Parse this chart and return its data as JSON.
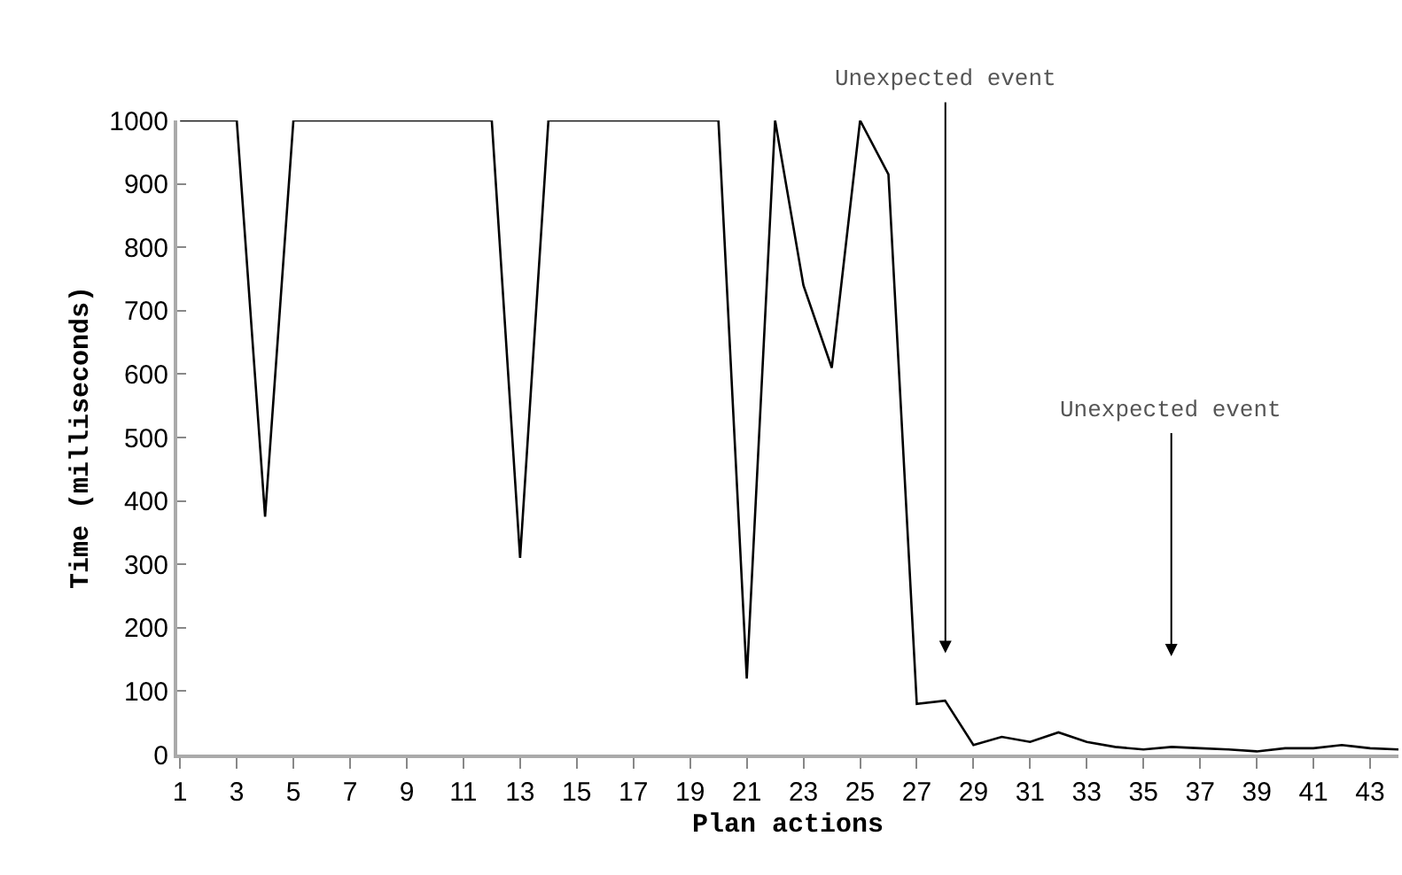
{
  "chart_data": {
    "type": "line",
    "xlabel": "Plan actions",
    "ylabel": "Time (milliseconds)",
    "x": [
      1,
      2,
      3,
      4,
      5,
      6,
      7,
      8,
      9,
      10,
      11,
      12,
      13,
      14,
      15,
      16,
      17,
      18,
      19,
      20,
      21,
      22,
      23,
      24,
      25,
      26,
      27,
      28,
      29,
      30,
      31,
      32,
      33,
      34,
      35,
      36,
      37,
      38,
      39,
      40,
      41,
      42,
      43,
      44
    ],
    "series": [
      {
        "color": "#000000",
        "values": [
          1000,
          1000,
          1000,
          375,
          1000,
          1000,
          1000,
          1000,
          1000,
          1000,
          1000,
          1000,
          310,
          1000,
          1000,
          1000,
          1000,
          1000,
          1000,
          1000,
          120,
          1000,
          740,
          610,
          1000,
          915,
          80,
          85,
          15,
          28,
          20,
          35,
          20,
          12,
          8,
          12,
          10,
          8,
          5,
          10,
          10,
          15,
          10,
          8
        ]
      }
    ],
    "xlim": [
      0.9,
      44
    ],
    "xticks": [
      1,
      3,
      5,
      7,
      9,
      11,
      13,
      15,
      17,
      19,
      21,
      23,
      25,
      27,
      29,
      31,
      33,
      35,
      37,
      39,
      41,
      43
    ],
    "ylim": [
      0,
      1000
    ],
    "yticks": [
      0,
      100,
      200,
      300,
      400,
      500,
      600,
      700,
      800,
      900,
      1000
    ],
    "grid": false,
    "marker": "none",
    "line_style": "solid",
    "annotations": [
      "Unexpected event",
      "Unexpected event"
    ]
  }
}
